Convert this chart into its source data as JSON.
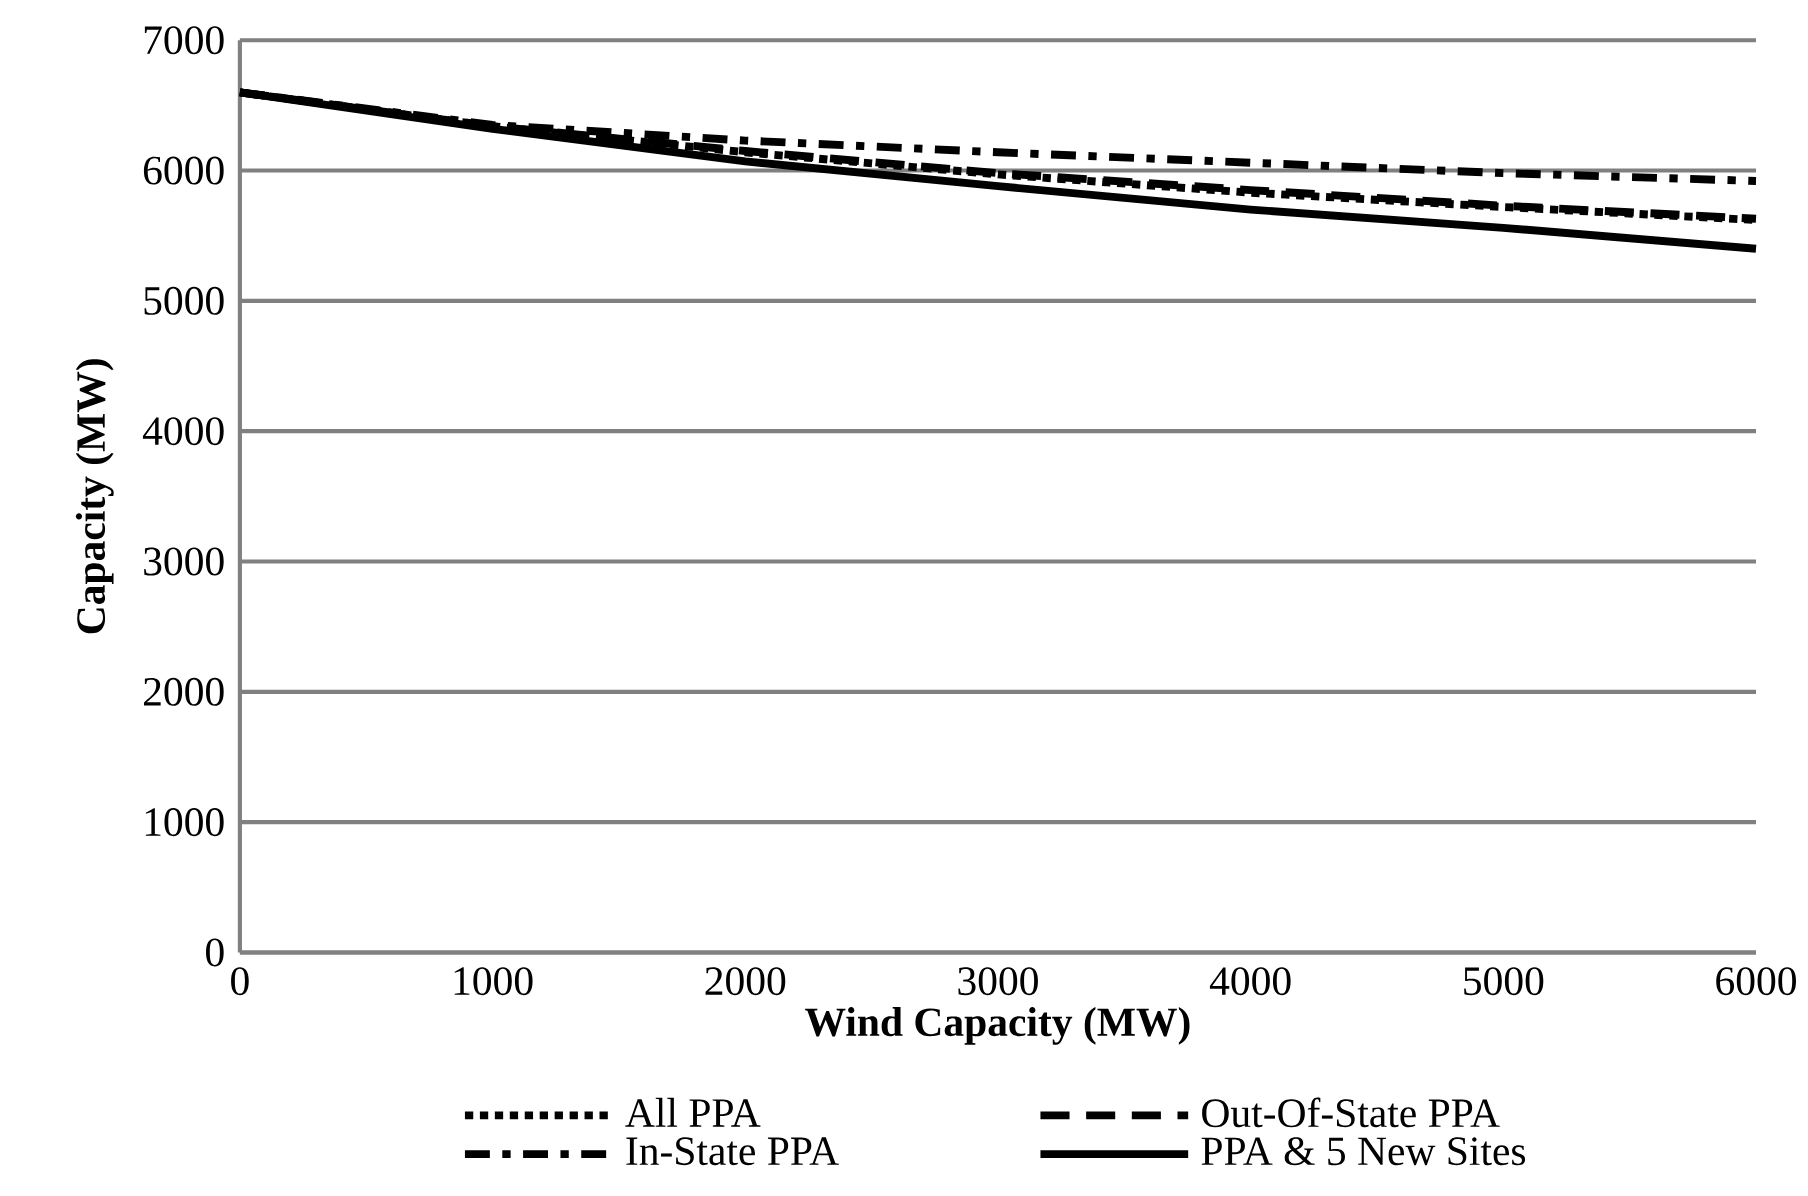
{
  "chart_data": {
    "type": "line",
    "xlabel": "Wind Capacity (MW)",
    "ylabel": "Capacity (MW)",
    "xlim": [
      0,
      6000
    ],
    "ylim": [
      0,
      7000
    ],
    "xticks": [
      0,
      1000,
      2000,
      3000,
      4000,
      5000,
      6000
    ],
    "yticks": [
      0,
      1000,
      2000,
      3000,
      4000,
      5000,
      6000,
      7000
    ],
    "grid": "y",
    "legend": "bottom",
    "x": [
      0,
      1000,
      2000,
      3000,
      4000,
      5000,
      6000
    ],
    "series": [
      {
        "name": "All PPA",
        "color": "#000000",
        "line_style": "dotted",
        "values": [
          6600,
          6340,
          6140,
          5970,
          5830,
          5720,
          5620
        ]
      },
      {
        "name": "Out-Of-State PPA",
        "color": "#000000",
        "line_style": "dashed",
        "values": [
          6600,
          6340,
          6150,
          5980,
          5850,
          5730,
          5630
        ]
      },
      {
        "name": "In-State PPA",
        "color": "#000000",
        "line_style": "dashdot",
        "values": [
          6600,
          6350,
          6230,
          6140,
          6060,
          5980,
          5920
        ]
      },
      {
        "name": "PPA & 5 New Sites",
        "color": "#000000",
        "line_style": "solid",
        "values": [
          6600,
          6320,
          6070,
          5880,
          5700,
          5560,
          5400
        ]
      }
    ]
  }
}
